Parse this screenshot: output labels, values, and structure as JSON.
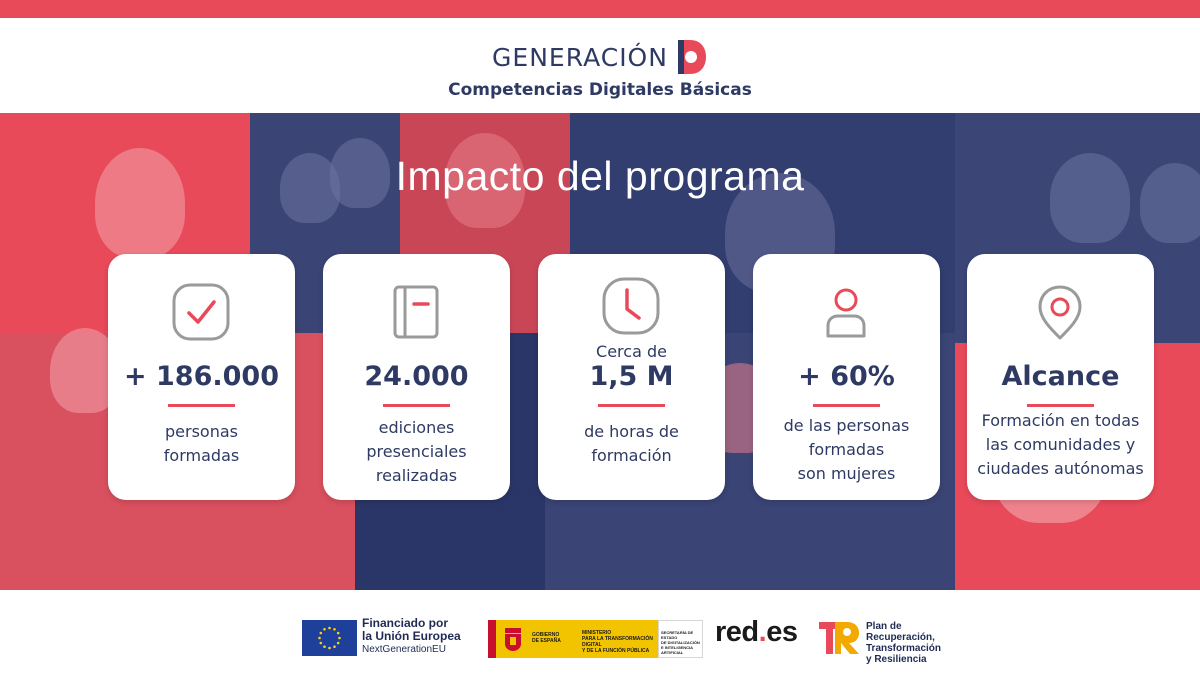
{
  "brand": {
    "name": "GENERACIÓN",
    "subtitle": "Competencias Digitales Básicas"
  },
  "hero": {
    "title": "Impacto del programa"
  },
  "cards": [
    {
      "icon": "check-icon",
      "pre": "",
      "value": "+ 186.000",
      "desc": [
        "personas",
        "formadas"
      ]
    },
    {
      "icon": "notebook-icon",
      "pre": "",
      "value": "24.000",
      "desc": [
        "ediciones",
        "presenciales",
        "realizadas"
      ]
    },
    {
      "icon": "clock-icon",
      "pre": "Cerca de",
      "value": "1,5 M",
      "desc": [
        "de horas de",
        "formación"
      ]
    },
    {
      "icon": "person-icon",
      "pre": "",
      "value": "+ 60%",
      "desc": [
        "de las personas",
        "formadas",
        "son mujeres"
      ]
    },
    {
      "icon": "location-pin-icon",
      "pre": "",
      "value": "Alcance",
      "desc": [
        "Formación en todas",
        "las comunidades y",
        "ciudades autónomas"
      ]
    }
  ],
  "footer": {
    "eu": {
      "line1": "Financiado por",
      "line2": "la Unión Europea",
      "line3": "NextGenerationEU"
    },
    "gobierno": {
      "left": [
        "GOBIERNO",
        "DE ESPAÑA"
      ],
      "mid": [
        "MINISTERIO",
        "PARA LA TRANSFORMACIÓN DIGITAL",
        "Y DE LA FUNCIÓN PÚBLICA"
      ],
      "right": [
        "SECRETARÍA DE ESTADO",
        "DE DIGITALIZACIÓN",
        "E INTELIGENCIA ARTIFICIAL"
      ]
    },
    "redes": {
      "part1": "red",
      "dot": ".",
      "part2": "es"
    },
    "prtr": [
      "Plan de",
      "Recuperación,",
      "Transformación",
      "y Resiliencia"
    ]
  },
  "colors": {
    "accent": "#e84a5a",
    "navy": "#2e3a63",
    "hero_bg": "#2e3a6c"
  }
}
